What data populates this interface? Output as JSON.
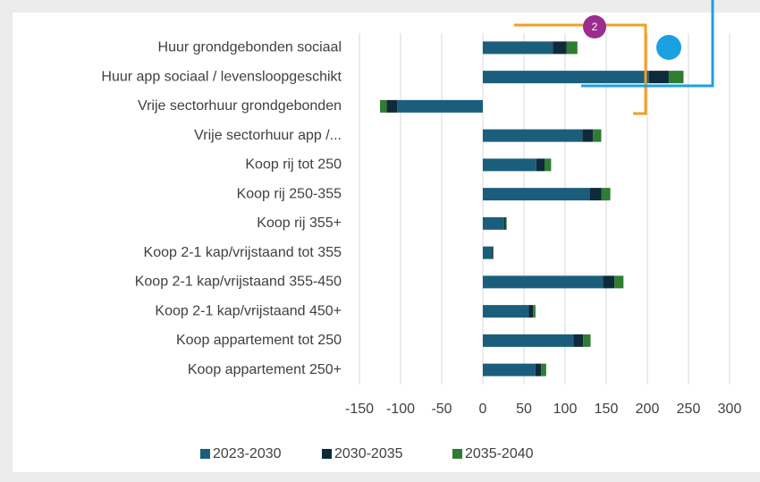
{
  "chart_data": {
    "type": "stacked_barh",
    "categories": [
      "Huur grondgebonden sociaal",
      "Huur app sociaal / levensloopgeschikt",
      "Vrije sectorhuur grondgebonden",
      "Vrije sectorhuur app /...",
      "Koop rij tot 250",
      "Koop rij 250-355",
      "Koop rij 355+",
      "Koop 2-1 kap/vrijstaand tot 355",
      "Koop 2-1 kap/vrijstaand 355-450",
      "Koop 2-1 kap/vrijstaand 450+",
      "Koop appartement tot 250",
      "Koop appartement 250+"
    ],
    "series": [
      {
        "name": "2023-2030",
        "color": "#1b5e7b",
        "values": [
          85,
          202,
          -104,
          121,
          65,
          130,
          26,
          11,
          146,
          56,
          110,
          64
        ]
      },
      {
        "name": "2030-2035",
        "color": "#0f2a3a",
        "values": [
          17,
          24,
          -13,
          13,
          10,
          14,
          2,
          1,
          14,
          5,
          12,
          7
        ]
      },
      {
        "name": "2035-2040",
        "color": "#2e7d32",
        "values": [
          13,
          18,
          -8,
          10,
          8,
          11,
          1,
          1,
          11,
          3,
          9,
          6
        ]
      }
    ],
    "xlim": [
      -150,
      300
    ],
    "xticks": [
      -150,
      -100,
      -50,
      0,
      50,
      100,
      150,
      200,
      250,
      300
    ],
    "grid": true,
    "legend": "bottom",
    "annotations": [
      "2"
    ]
  }
}
